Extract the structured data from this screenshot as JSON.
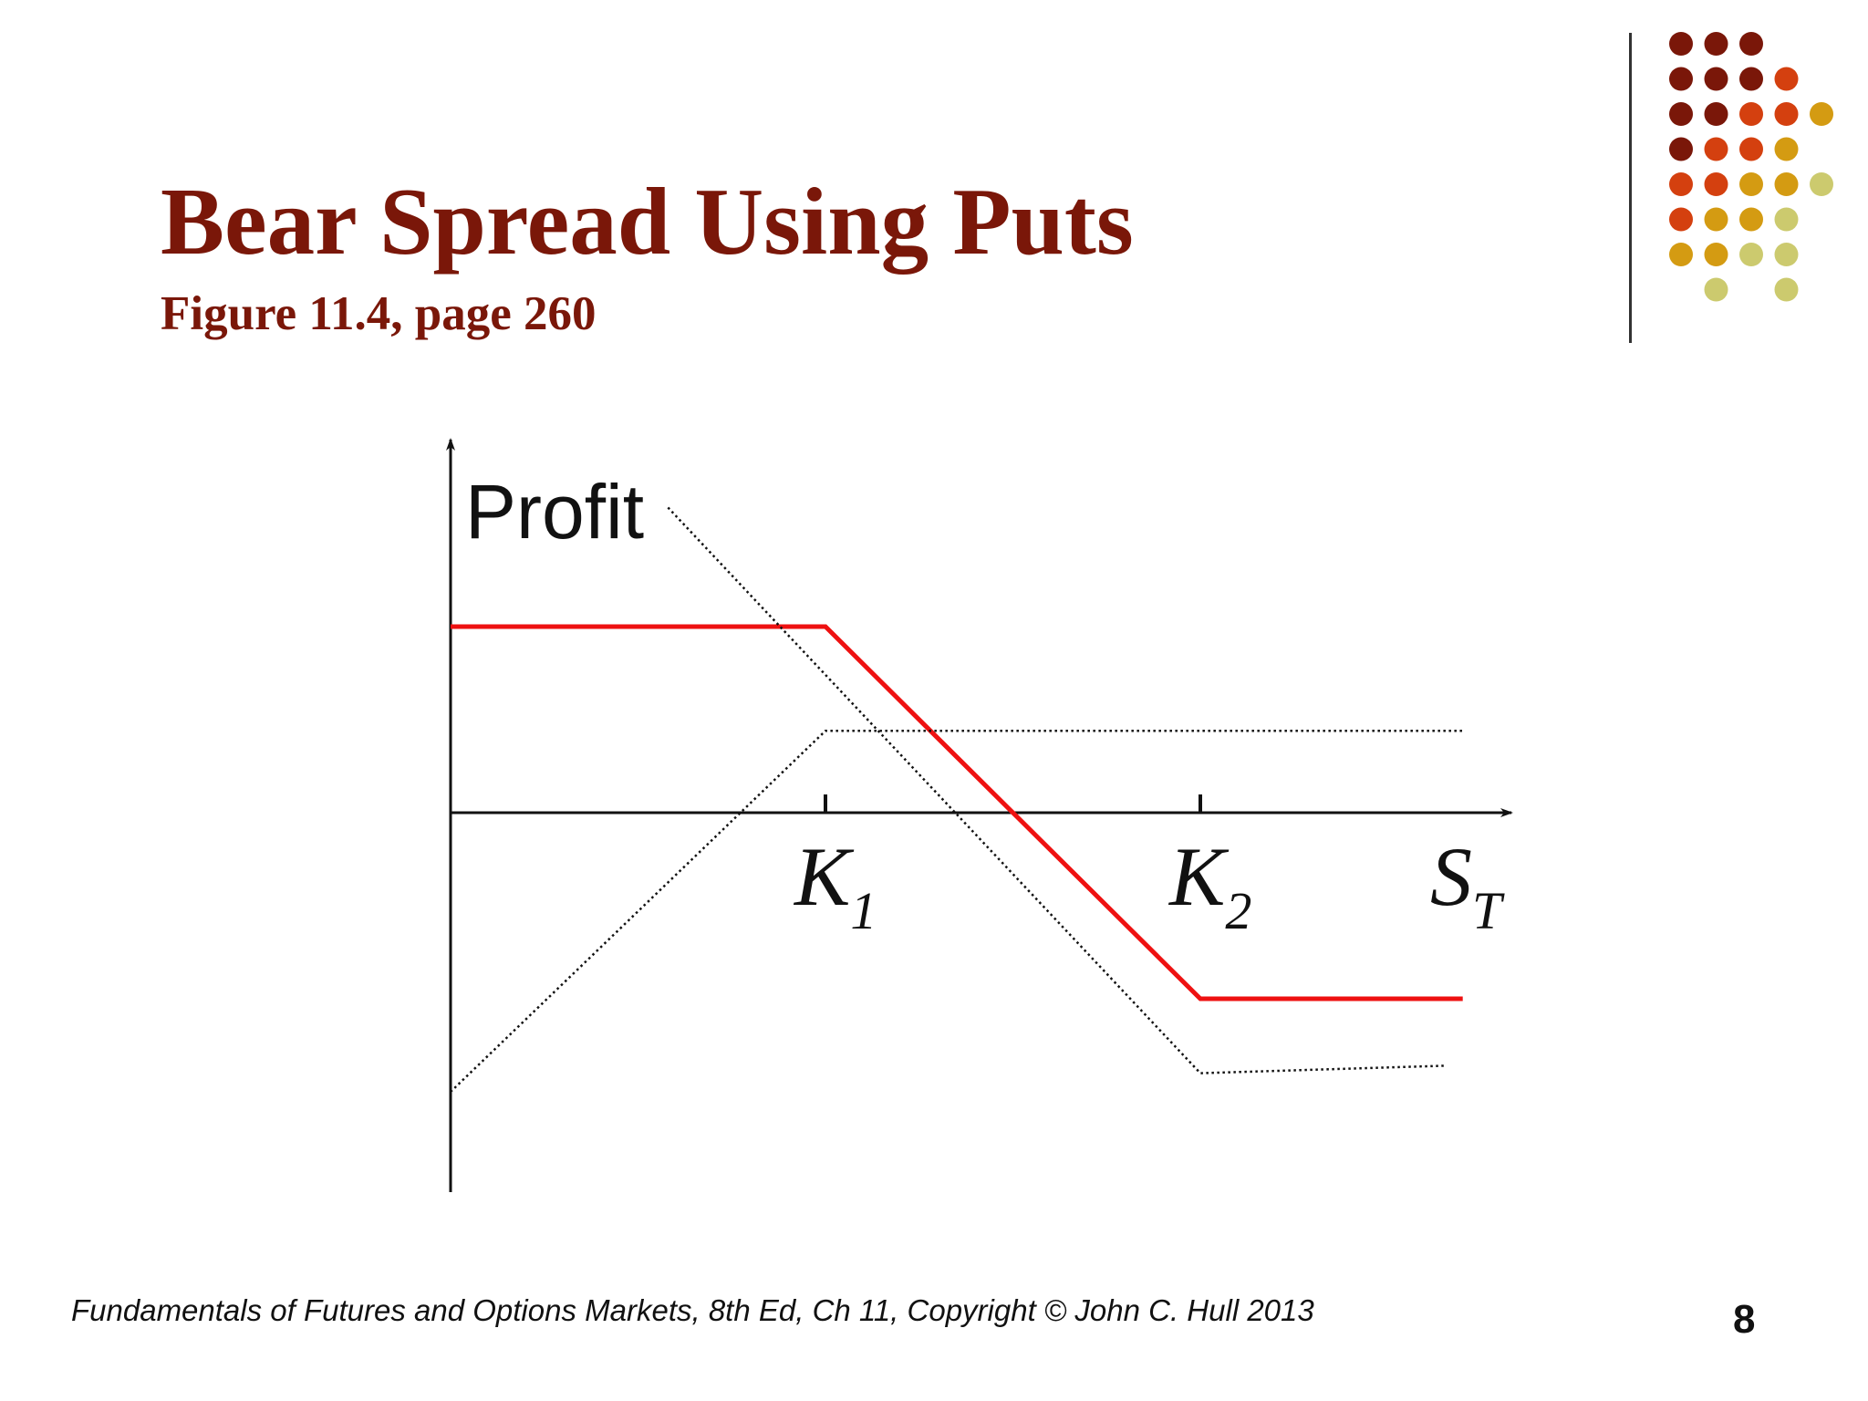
{
  "slide": {
    "title": "Bear Spread Using Puts",
    "subtitle": "Figure 11.4, page 260",
    "footer": "Fundamentals of Futures and Options Markets, 8th Ed, Ch 11, Copyright © John C. Hull 2013",
    "page_number": "8"
  },
  "decoration": {
    "dot_colors": [
      "#7a1709",
      "#d4400f",
      "#d49b12",
      "#ccca6e"
    ],
    "dot_grid": [
      [
        0,
        0,
        0,
        null,
        null
      ],
      [
        0,
        0,
        0,
        1,
        null
      ],
      [
        0,
        0,
        1,
        1,
        2
      ],
      [
        0,
        1,
        1,
        2,
        null
      ],
      [
        1,
        1,
        2,
        2,
        3
      ],
      [
        1,
        2,
        2,
        3,
        null
      ],
      [
        2,
        2,
        3,
        3,
        null
      ],
      [
        null,
        3,
        null,
        3,
        null
      ]
    ]
  },
  "chart_data": {
    "type": "line",
    "title": "",
    "ylabel": "Profit",
    "xlabel_main": "S",
    "xlabel_sub": "T",
    "x_ticks": [
      {
        "main": "K",
        "sub": "1",
        "x": 1
      },
      {
        "main": "K",
        "sub": "2",
        "x": 2
      }
    ],
    "xlim": [
      0,
      2.8
    ],
    "ylim": [
      -1.0,
      1.0
    ],
    "series": [
      {
        "style": "solid",
        "color": "#ee1111",
        "points": [
          [
            0,
            0.5
          ],
          [
            1,
            0.5
          ],
          [
            2,
            -0.5
          ],
          [
            2.7,
            -0.5
          ]
        ]
      },
      {
        "style": "dotted",
        "color": "#111111",
        "points": [
          [
            0,
            -0.75
          ],
          [
            1,
            0.22
          ],
          [
            2.7,
            0.22
          ]
        ]
      },
      {
        "style": "dotted",
        "color": "#111111",
        "points": [
          [
            0.58,
            0.82
          ],
          [
            2,
            -0.7
          ],
          [
            2.65,
            -0.68
          ]
        ]
      }
    ]
  }
}
